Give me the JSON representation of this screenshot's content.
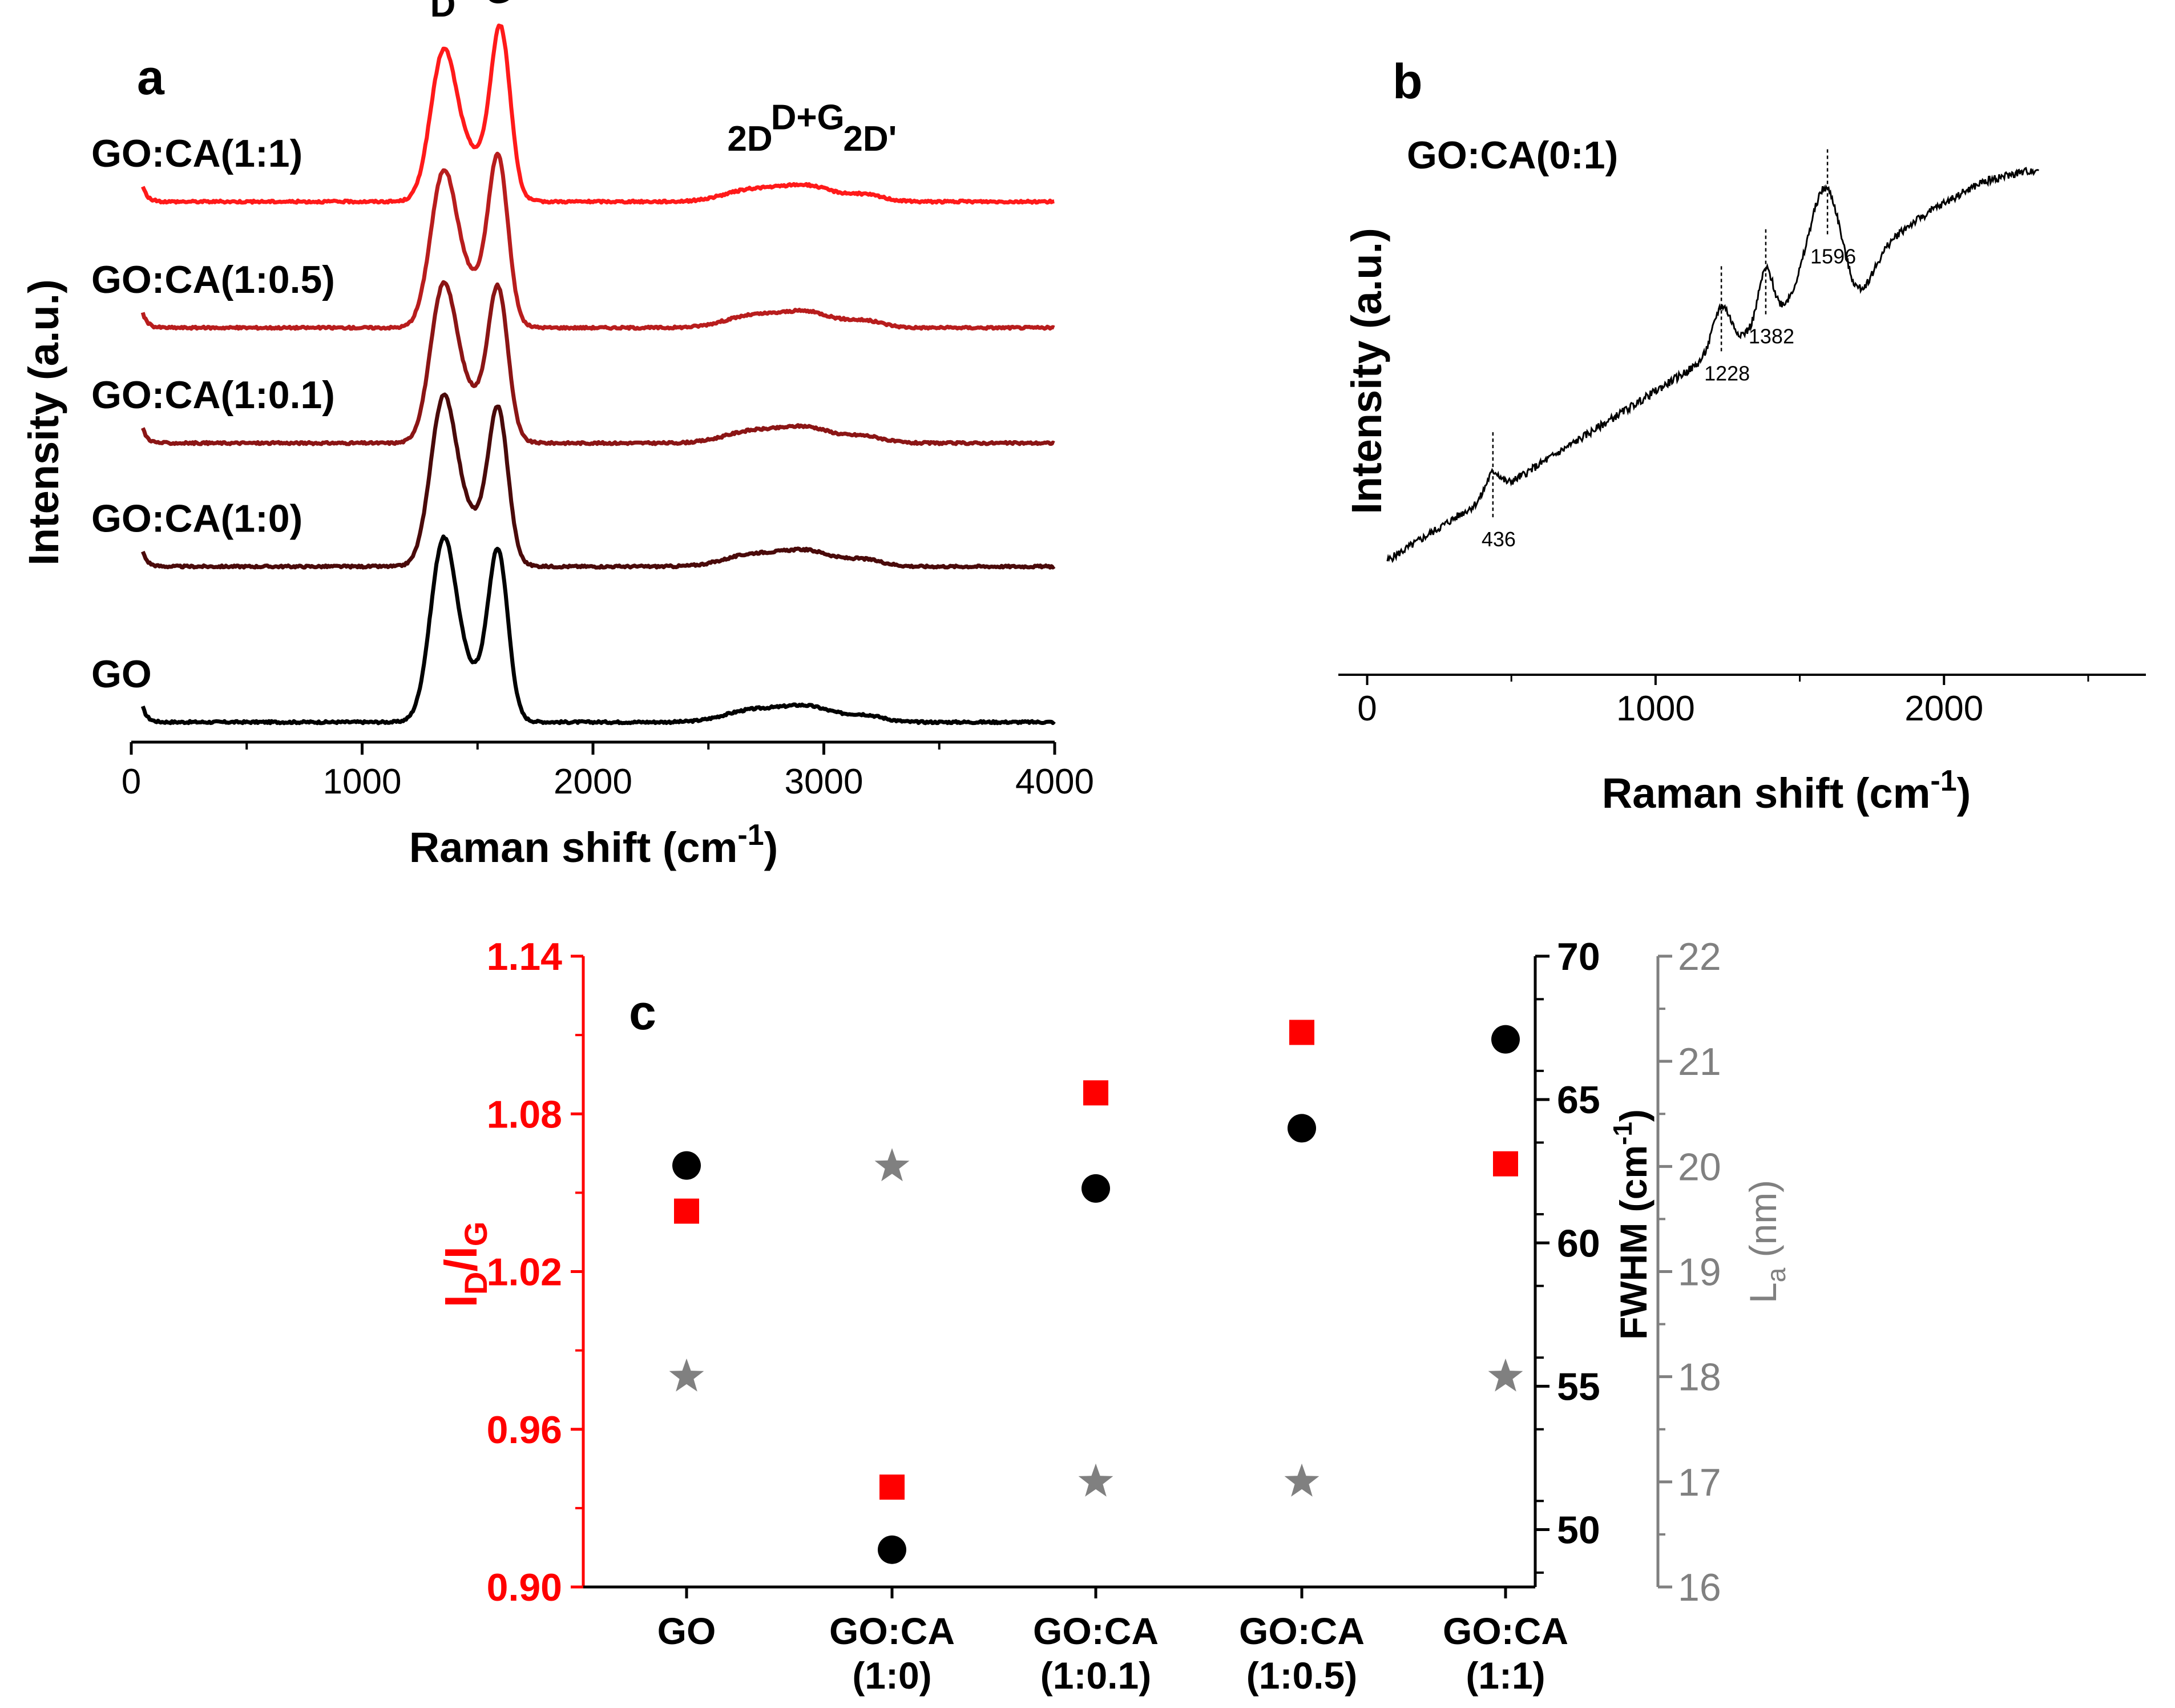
{
  "figure": {
    "panel_labels": {
      "a": "a",
      "b": "b",
      "c": "c"
    }
  },
  "chart_data": [
    {
      "id": "a",
      "type": "line",
      "title": "",
      "xlabel": "Raman shift (cm",
      "xlabel_sup": "-1",
      "xlabel_tail": ")",
      "ylabel": "Intensity (a.u.)",
      "xlim": [
        0,
        4000
      ],
      "xticks": [
        0,
        1000,
        2000,
        3000,
        4000
      ],
      "x_start": 50,
      "peak_labels": [
        {
          "label": "D",
          "x": 1350
        },
        {
          "label": "G",
          "x": 1590
        },
        {
          "label": "2D",
          "x": 2680
        },
        {
          "label": "D+G",
          "x": 2930
        },
        {
          "label": "2D'",
          "x": 3200
        }
      ],
      "series": [
        {
          "name": "GO",
          "color": "#000000",
          "baseline": 0.0,
          "d_height": 3.05,
          "g_height": 2.85,
          "g_center": 1590
        },
        {
          "name": "GO:CA(1:0)",
          "color": "#4a0a0a",
          "baseline": 2.9,
          "d_height": 2.8,
          "g_height": 2.6,
          "g_center": 1590
        },
        {
          "name": "GO:CA(1:0.1)",
          "color": "#8b1515",
          "baseline": 5.2,
          "d_height": 2.6,
          "g_height": 2.55,
          "g_center": 1590
        },
        {
          "name": "GO:CA(1:0.5)",
          "color": "#b81d1d",
          "baseline": 7.35,
          "d_height": 2.55,
          "g_height": 2.85,
          "g_center": 1590
        },
        {
          "name": "GO:CA(1:1)",
          "color": "#ff1a1a",
          "baseline": 9.7,
          "d_height": 2.45,
          "g_height": 2.95,
          "g_center": 1600
        }
      ]
    },
    {
      "id": "b",
      "type": "line",
      "title": "",
      "xlabel": "Raman shift (cm",
      "xlabel_sup": "-1",
      "xlabel_tail": ")",
      "ylabel": "Intensity (a.u.)",
      "xlim": [
        -100,
        2700
      ],
      "xticks": [
        0,
        1000,
        2000
      ],
      "x_range": [
        70,
        2330
      ],
      "series": [
        {
          "name": "GO:CA(0:1)",
          "color": "#000000"
        }
      ],
      "peak_annotations": [
        436,
        1228,
        1382,
        1596
      ],
      "annotation_labels": [
        "436",
        "1228",
        "1382",
        "1596"
      ]
    },
    {
      "id": "c",
      "type": "scatter",
      "title": "",
      "categories": [
        "GO",
        "GO:CA\n(1:0)",
        "GO:CA\n(1:0.1)",
        "GO:CA\n(1:0.5)",
        "GO:CA\n(1:1)"
      ],
      "category_lines": [
        [
          "GO"
        ],
        [
          "GO:CA",
          "(1:0)"
        ],
        [
          "GO:CA",
          "(1:0.1)"
        ],
        [
          "GO:CA",
          "(1:0.5)"
        ],
        [
          "GO:CA",
          "(1:1)"
        ]
      ],
      "axes": {
        "left": {
          "label": "I_D/I_G",
          "label_main1": "I",
          "label_sub1": "D",
          "label_main2": "/I",
          "label_sub2": "G",
          "color": "#ff0000",
          "ylim": [
            0.9,
            1.14
          ],
          "ticks": [
            "0.90",
            "0.96",
            "1.02",
            "1.08",
            "1.14"
          ]
        },
        "right1": {
          "label": "FWHM (cm",
          "label_sup": "-1",
          "label_tail": ")",
          "color": "#000000",
          "ylim": [
            48,
            70
          ],
          "ticks": [
            "50",
            "55",
            "60",
            "65",
            "70"
          ]
        },
        "right2": {
          "label_main": "L",
          "label_sub": "a",
          "label_tail": " (nm)",
          "color": "#808080",
          "ylim": [
            16,
            22
          ],
          "ticks": [
            "16",
            "17",
            "18",
            "19",
            "20",
            "21",
            "22"
          ]
        }
      },
      "series": [
        {
          "name": "I_D/I_G",
          "axis": "left",
          "marker": "square",
          "color": "#ff0000",
          "values": [
            1.043,
            0.938,
            1.088,
            1.111,
            1.061
          ]
        },
        {
          "name": "FWHM",
          "axis": "right1",
          "marker": "circle",
          "color": "#000000",
          "values": [
            62.7,
            49.3,
            61.9,
            64.0,
            67.1
          ]
        },
        {
          "name": "La",
          "axis": "right2",
          "marker": "star",
          "color": "#808080",
          "values": [
            18,
            20,
            17,
            17,
            18
          ]
        }
      ]
    }
  ]
}
